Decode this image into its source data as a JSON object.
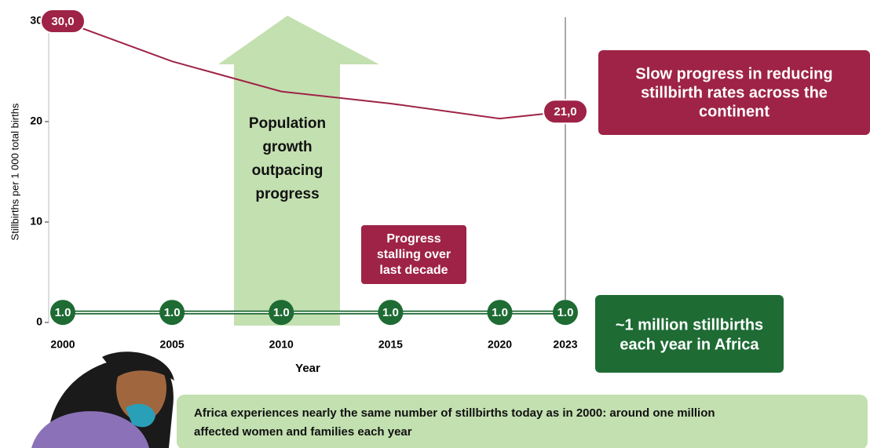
{
  "chart_data": {
    "type": "line",
    "ylabel": "Stillbirths per 1 000 total births",
    "xlabel": "Year",
    "x": [
      2000,
      2005,
      2010,
      2015,
      2020,
      2023
    ],
    "xlim": [
      2000,
      2023
    ],
    "xticks": [
      2000,
      2005,
      2010,
      2015,
      2020,
      2023
    ],
    "ylim": [
      0,
      30
    ],
    "yticks": [
      0,
      10,
      20,
      30
    ],
    "series": [
      {
        "color": "#9e2346",
        "values": [
          30,
          26,
          23,
          21.8,
          20.3,
          21
        ],
        "value_labels": [
          "30,0",
          null,
          null,
          null,
          null,
          "21,0"
        ]
      },
      {
        "color": "#1e6b34",
        "values": [
          1.0,
          1.0,
          1.0,
          1.0,
          1.0,
          1.0
        ],
        "value_labels": [
          "1.0",
          "1.0",
          "1.0",
          "1.0",
          "1.0",
          "1.0"
        ]
      }
    ],
    "annotations": {
      "arrow": [
        "Population",
        "growth",
        "outpacing",
        "progress"
      ],
      "stalling": [
        "Progress",
        "stalling over",
        "last decade"
      ],
      "rate_box": [
        "Slow progress in reducing",
        "stillbirth rates across the",
        "continent"
      ],
      "count_box": [
        "~1 million stillbirths",
        "each year in Africa"
      ],
      "banner": [
        "Africa experiences nearly the same number of stillbirths today as in 2000: around one million",
        "affected women and families each year"
      ]
    }
  }
}
